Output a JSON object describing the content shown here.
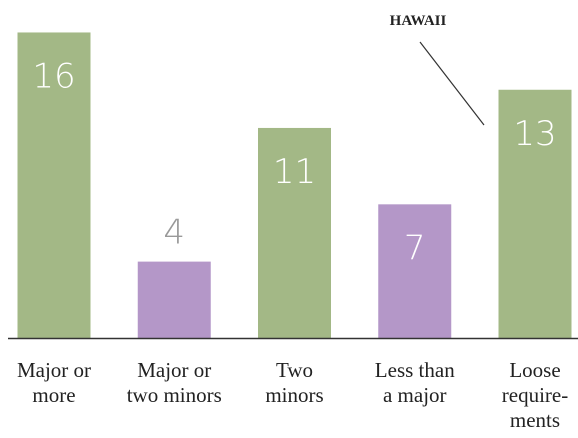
{
  "chart_data": {
    "type": "bar",
    "categories": [
      [
        "Major or",
        "more"
      ],
      [
        "Major or",
        "two minors"
      ],
      [
        "Two",
        "minors"
      ],
      [
        "Less than",
        "a major"
      ],
      [
        "Loose",
        "require-",
        "ments"
      ]
    ],
    "values": [
      16,
      4,
      11,
      7,
      13
    ],
    "colors": [
      "#a3b886",
      "#b497c8",
      "#a3b886",
      "#b497c8",
      "#a3b886"
    ],
    "ylim": [
      0,
      17.7
    ],
    "annotation": "HAWAII"
  }
}
